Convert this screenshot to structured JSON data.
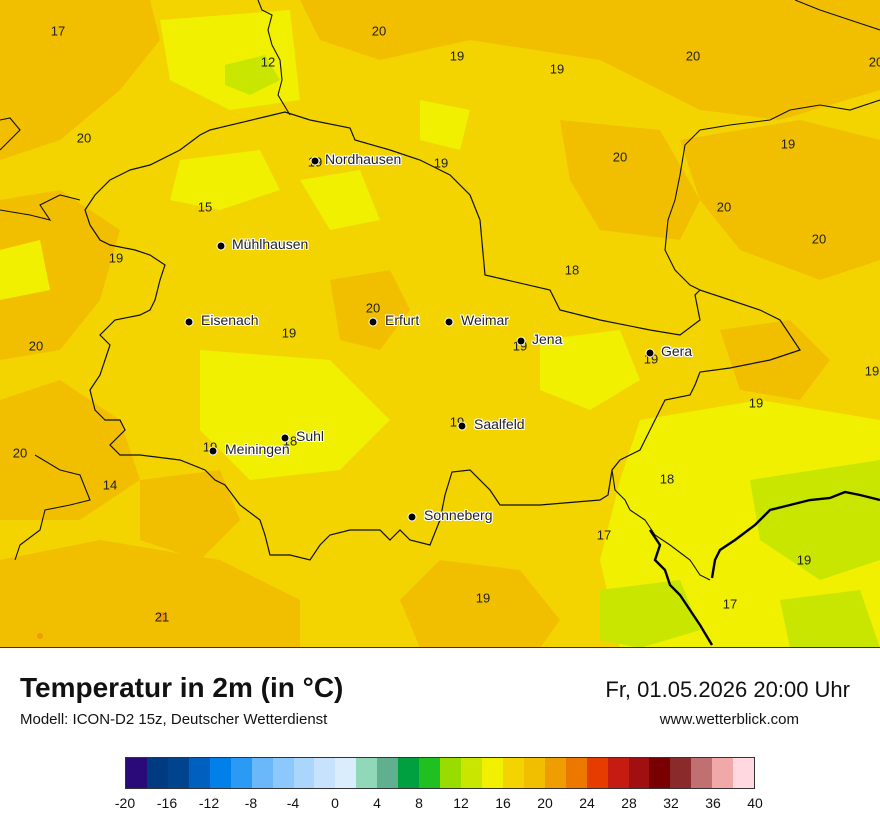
{
  "title": "Temperatur in 2m (in °C)",
  "model": "Modell: ICON-D2 15z, Deutscher Wetterdienst",
  "datetime": "Fr, 01.05.2026 20:00 Uhr",
  "site": "www.wetterblick.com",
  "colors": {
    "base": "#f3d400",
    "warm": "#f2bf00",
    "light": "#f0f000",
    "green": "#c8e600",
    "orange": "#ee9e00"
  },
  "cities": [
    {
      "name": "Nordhausen"
    },
    {
      "name": "Mühlhausen"
    },
    {
      "name": "Eisenach"
    },
    {
      "name": "Erfurt"
    },
    {
      "name": "Weimar"
    },
    {
      "name": "Jena"
    },
    {
      "name": "Gera"
    },
    {
      "name": "Saalfeld"
    },
    {
      "name": "Suhl"
    },
    {
      "name": "Meiningen"
    },
    {
      "name": "Sonneberg"
    }
  ],
  "values": [
    "17",
    "20",
    "12",
    "19",
    "19",
    "20",
    "20",
    "20",
    "19",
    "19",
    "20",
    "19",
    "15",
    "20",
    "19",
    "18",
    "20",
    "20",
    "19",
    "19",
    "19",
    "19",
    "19",
    "19",
    "20",
    "18",
    "19",
    "14",
    "20",
    "17",
    "19",
    "19",
    "21",
    "17"
  ],
  "legend": {
    "colors": [
      "#2a0a78",
      "#003a80",
      "#00448e",
      "#0060c0",
      "#0080e8",
      "#2a9af5",
      "#6ab8fa",
      "#8cc8fb",
      "#aad6fb",
      "#c6e2fc",
      "#daedfd",
      "#90d8b8",
      "#60b090",
      "#00a040",
      "#20c020",
      "#98dc00",
      "#c8e600",
      "#f0f000",
      "#f3d400",
      "#f2bf00",
      "#ee9e00",
      "#ec7800",
      "#e63c00",
      "#c41c10",
      "#a01010",
      "#780000",
      "#8a2a2a",
      "#c07070",
      "#f0a8a8",
      "#ffd8e0"
    ],
    "ticks": [
      "-20",
      "-16",
      "-12",
      "-8",
      "-4",
      "0",
      "4",
      "8",
      "12",
      "16",
      "20",
      "24",
      "28",
      "32",
      "36",
      "40"
    ]
  }
}
